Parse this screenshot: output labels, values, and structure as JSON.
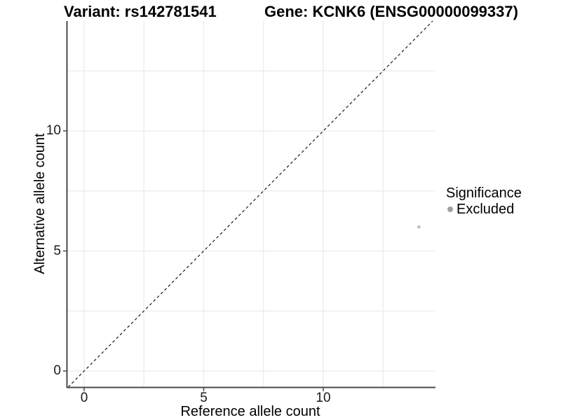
{
  "header": {
    "title_left": "Variant: rs142781541",
    "title_right": "Gene: KCNK6 (ENSG00000099337)"
  },
  "chart_data": {
    "type": "scatter",
    "title_left": "Variant: rs142781541",
    "title_right": "Gene: KCNK6 (ENSG00000099337)",
    "variant": "rs142781541",
    "gene": "KCNK6",
    "gene_id": "ENSG00000099337",
    "xlabel": "Reference allele count",
    "ylabel": "Alternative allele count",
    "x_axis": {
      "ticks": [
        0,
        5,
        10
      ],
      "range": [
        -0.73,
        14.66
      ]
    },
    "y_axis": {
      "ticks": [
        0,
        5,
        10
      ],
      "range": [
        -0.67,
        14.58
      ]
    },
    "gridlines": {
      "x": [
        0,
        2.5,
        5,
        7.5,
        10,
        12.5
      ],
      "y": [
        0,
        2.5,
        5,
        7.5,
        10,
        12.5
      ],
      "grid_on": true
    },
    "points": [
      {
        "x": 14,
        "y": 6,
        "group": "Excluded"
      }
    ],
    "reference_line": {
      "type": "identity",
      "slope": 1,
      "intercept": 0,
      "style": "dashed"
    },
    "legend": {
      "position": "right",
      "title": "Significance",
      "entries": [
        {
          "label": "Excluded",
          "color": "#a0a0a0"
        }
      ]
    },
    "colors": {
      "background": "#ffffff",
      "panel_background": "#ffffff",
      "gridline": "#ececec",
      "axis_line": "#4a4a4a",
      "tick_mark": "#4a4a4a",
      "dashed_line": "#1a1a1a",
      "point": "#bdbdbd",
      "legend_dot": "#a0a0a0",
      "text": "#000000"
    }
  }
}
